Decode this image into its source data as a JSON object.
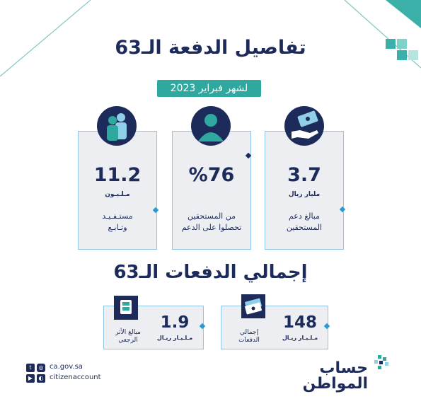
{
  "header": {
    "title": "تفاصيل الدفعة الـ63",
    "date": "لشهر فبراير 2023"
  },
  "cards": [
    {
      "value": "11.2",
      "unit": "مـلـيـون",
      "desc_line1": "مستـفـيـد",
      "desc_line2": "وتـابـع",
      "icon": "people-icon"
    },
    {
      "value": "%76",
      "unit": "",
      "desc_line1": "من المستحقين",
      "desc_line2": "تحصلوا على الدعم",
      "icon": "person-icon"
    },
    {
      "value": "3.7",
      "unit": "مليار ريال",
      "desc_line1": "مبالغ دعم",
      "desc_line2": "المستحقين",
      "icon": "money-hand-icon"
    }
  ],
  "totals": {
    "title": "إجمالي الدفعات الـ63",
    "items": [
      {
        "value": "1.9",
        "unit": "مـلـيـار ريـال",
        "desc_line1": "مبالغ الأثر",
        "desc_line2": "الرجعي",
        "icon": "hand-cash-icon"
      },
      {
        "value": "148",
        "unit": "مـلـيـار ريـال",
        "desc_line1": "إجمالي",
        "desc_line2": "الدفعات",
        "icon": "cash-stack-icon"
      }
    ]
  },
  "footer": {
    "url": "ca.gov.sa",
    "handle": "citizenaccount",
    "brand_line1": "حساب",
    "brand_line2": "المواطن"
  },
  "colors": {
    "navy": "#1c2b5a",
    "teal": "#2fa8a0",
    "light_blue": "#8fc6e8",
    "card_bg": "#eceef1"
  }
}
